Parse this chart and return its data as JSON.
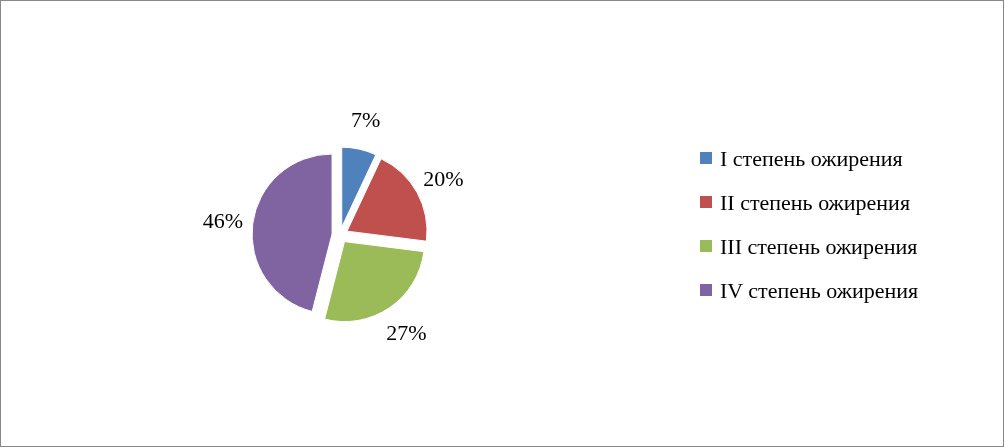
{
  "chart_data": {
    "type": "pie",
    "categories": [
      "I степень ожирения",
      "II степень ожирения",
      "III степень ожирения",
      "IV степень ожирения"
    ],
    "values": [
      7,
      20,
      27,
      46
    ],
    "colors": [
      "#4f81bd",
      "#c0504d",
      "#9bbb59",
      "#8064a2"
    ],
    "value_labels": [
      "7%",
      "20%",
      "27%",
      "46%"
    ],
    "legend": "right"
  }
}
